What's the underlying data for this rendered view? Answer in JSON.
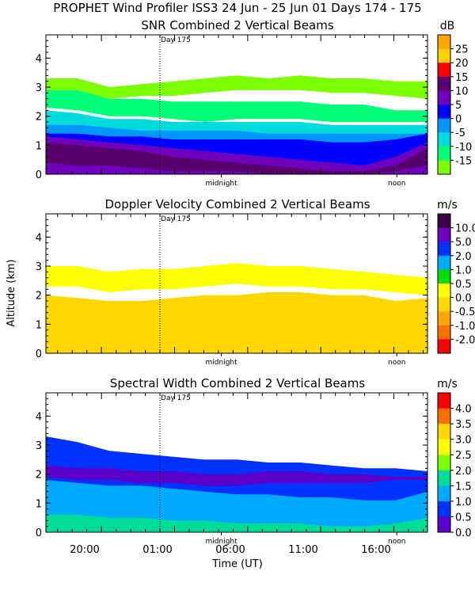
{
  "figure": {
    "title": "PROPHET Wind Profiler ISS3  24 Jun - 25 Jun 01 Days 174 - 175",
    "ylabel": "Altitude (km)",
    "xlabel": "Time (UT)",
    "x_tick_labels": [
      "20:00",
      "01:00",
      "06:00",
      "11:00",
      "16:00"
    ],
    "y_tick_labels": [
      "0",
      "1",
      "2",
      "3",
      "4"
    ],
    "marker_labels": {
      "day": "Day 175",
      "midnight": "midnight",
      "noon": "noon"
    }
  },
  "chart_data": [
    {
      "type": "heatmap",
      "title": "SNR Combined 2 Vertical Beams",
      "xlabel": "Time (UT)",
      "ylabel": "Altitude (km)",
      "x_ticks": [
        "20:00",
        "01:00",
        "06:00",
        "11:00",
        "16:00"
      ],
      "xlim_hours_ut": [
        16.2,
        42.3
      ],
      "ylim_km": [
        0,
        4.8
      ],
      "y_ticks": [
        0,
        1,
        2,
        3,
        4
      ],
      "colorbar": {
        "unit": "dB",
        "labels": [
          "25",
          "20",
          "15",
          "10",
          "5",
          "0",
          "-5",
          "-10",
          "-15"
        ],
        "colors": [
          "#ffa500",
          "#ffd200",
          "#ff0000",
          "#5a006e",
          "#6e00be",
          "#0000ff",
          "#0096ff",
          "#00dcdc",
          "#00ff78",
          "#7cff00"
        ]
      },
      "annotations": [
        "Day 175",
        "midnight",
        "noon"
      ],
      "layers": [
        {
          "level": "-15",
          "color": "#7cff00",
          "top_km": [
            3.3,
            3.3,
            3.0,
            3.1,
            3.2,
            3.3,
            3.4,
            3.3,
            3.4,
            3.3,
            3.3,
            3.2,
            3.2
          ],
          "bottom_km": [
            2.9,
            2.9,
            2.6,
            2.7,
            2.7,
            2.8,
            2.9,
            2.9,
            2.9,
            2.8,
            2.8,
            2.7,
            2.6
          ]
        },
        {
          "level": "-10",
          "color": "#00ff78",
          "top_km": [
            2.9,
            2.9,
            2.6,
            2.6,
            2.5,
            2.5,
            2.5,
            2.5,
            2.5,
            2.4,
            2.4,
            2.2,
            2.2
          ],
          "bottom_km": [
            2.3,
            2.2,
            2.0,
            2.0,
            1.9,
            1.8,
            1.9,
            1.9,
            1.9,
            1.8,
            1.8,
            1.8,
            1.8
          ]
        },
        {
          "level": "-5",
          "color": "#00dcdc",
          "top_km": [
            2.2,
            2.1,
            1.9,
            1.9,
            1.8,
            1.8,
            1.8,
            1.8,
            1.8,
            1.7,
            1.7,
            1.7,
            1.7
          ],
          "bottom_km": [
            1.6,
            1.6,
            1.5,
            1.4,
            1.4,
            1.4,
            1.4,
            1.3,
            1.3,
            1.3,
            1.3,
            1.3,
            1.3
          ]
        },
        {
          "level": "0",
          "color": "#0096ff",
          "top_km": [
            1.7,
            1.7,
            1.6,
            1.5,
            1.5,
            1.5,
            1.5,
            1.4,
            1.4,
            1.4,
            1.4,
            1.4,
            1.4
          ],
          "bottom_km": [
            1.3,
            1.2,
            1.2,
            1.1,
            1.1,
            1.1,
            1.1,
            1.0,
            1.0,
            1.0,
            1.0,
            1.0,
            1.0
          ]
        },
        {
          "level": "5",
          "color": "#0000ff",
          "top_km": [
            1.4,
            1.4,
            1.3,
            1.3,
            1.2,
            1.2,
            1.2,
            1.2,
            1.2,
            1.1,
            1.1,
            1.2,
            1.4
          ],
          "bottom_km": [
            0.0,
            0.0,
            0.0,
            0.0,
            0.0,
            0.0,
            0.0,
            0.0,
            0.0,
            0.0,
            0.0,
            0.0,
            0.0
          ]
        },
        {
          "level": "10",
          "color": "#6e00be",
          "top_km": [
            1.3,
            1.2,
            1.1,
            1.0,
            0.9,
            0.8,
            0.7,
            0.6,
            0.5,
            0.4,
            0.3,
            0.6,
            1.1
          ],
          "bottom_km": [
            0.0,
            0.0,
            0.0,
            0.0,
            0.0,
            0.0,
            0.0,
            0.0,
            0.0,
            0.0,
            0.0,
            0.0,
            0.0
          ]
        },
        {
          "level": "15",
          "color": "#5a006e",
          "top_km": [
            1.1,
            1.0,
            0.9,
            0.8,
            0.6,
            0.5,
            0.4,
            0.3,
            0.2,
            0.1,
            0.1,
            0.3,
            0.9
          ],
          "bottom_km": [
            0.4,
            0.3,
            0.3,
            0.2,
            0.1,
            0.1,
            0.1,
            0.0,
            0.0,
            0.0,
            0.0,
            0.1,
            0.3
          ]
        }
      ]
    },
    {
      "type": "heatmap",
      "title": "Doppler Velocity Combined 2 Vertical Beams",
      "xlabel": "Time (UT)",
      "ylabel": "Altitude (km)",
      "x_ticks": [
        "20:00",
        "01:00",
        "06:00",
        "11:00",
        "16:00"
      ],
      "xlim_hours_ut": [
        16.2,
        42.3
      ],
      "ylim_km": [
        0,
        4.8
      ],
      "y_ticks": [
        0,
        1,
        2,
        3,
        4
      ],
      "colorbar": {
        "unit": "m/s",
        "labels": [
          "10.0",
          "5.0",
          "2.0",
          "1.0",
          "0.5",
          "0.0",
          "-0.5",
          "-1.0",
          "-2.0"
        ],
        "colors": [
          "#3c0046",
          "#6e00be",
          "#0032ff",
          "#00aaff",
          "#00dc00",
          "#ffff00",
          "#ffd700",
          "#ffa500",
          "#ff6e00",
          "#ff0000"
        ]
      },
      "annotations": [
        "Day 175",
        "midnight",
        "noon"
      ],
      "layers": [
        {
          "level": "0.0",
          "color": "#ffff00",
          "top_km": [
            3.0,
            3.0,
            2.8,
            2.9,
            2.9,
            3.0,
            3.1,
            3.0,
            3.0,
            2.9,
            2.8,
            2.7,
            2.6
          ],
          "bottom_km": [
            2.3,
            2.3,
            2.1,
            2.2,
            2.2,
            2.3,
            2.4,
            2.3,
            2.3,
            2.2,
            2.2,
            2.1,
            2.0
          ]
        },
        {
          "level": "-0.5",
          "color": "#ffd700",
          "top_km": [
            2.0,
            1.9,
            1.8,
            1.8,
            1.9,
            2.0,
            2.0,
            2.1,
            2.1,
            2.0,
            2.0,
            1.8,
            1.9
          ],
          "bottom_km": [
            0.0,
            0.0,
            0.0,
            0.0,
            0.0,
            0.0,
            0.0,
            0.0,
            0.0,
            0.0,
            0.0,
            0.0,
            0.0
          ]
        }
      ]
    },
    {
      "type": "heatmap",
      "title": "Spectral Width Combined 2 Vertical Beams",
      "xlabel": "Time (UT)",
      "ylabel": "Altitude (km)",
      "x_ticks": [
        "20:00",
        "01:00",
        "06:00",
        "11:00",
        "16:00"
      ],
      "xlim_hours_ut": [
        16.2,
        42.3
      ],
      "ylim_km": [
        0,
        4.8
      ],
      "y_ticks": [
        0,
        1,
        2,
        3,
        4
      ],
      "colorbar": {
        "unit": "m/s",
        "labels": [
          "4.0",
          "3.5",
          "3.0",
          "2.5",
          "2.0",
          "1.5",
          "1.0",
          "0.5",
          "0.0"
        ],
        "colors": [
          "#ff0000",
          "#ff6e00",
          "#ffd700",
          "#ffff00",
          "#7cff00",
          "#00dc96",
          "#00aaff",
          "#0032ff",
          "#5a00c8"
        ]
      },
      "annotations": [
        "Day 175",
        "midnight",
        "noon"
      ],
      "layers": [
        {
          "level": "0.5",
          "color": "#0032ff",
          "top_km": [
            3.3,
            3.1,
            2.8,
            2.7,
            2.6,
            2.5,
            2.5,
            2.4,
            2.4,
            2.3,
            2.2,
            2.2,
            2.1
          ],
          "bottom_km": [
            0.0,
            0.0,
            0.0,
            0.0,
            0.0,
            0.0,
            0.0,
            0.0,
            0.0,
            0.0,
            0.0,
            0.0,
            0.0
          ]
        },
        {
          "level": "0.0",
          "color": "#5a00c8",
          "top_km": [
            2.3,
            2.2,
            2.2,
            2.1,
            2.1,
            2.0,
            2.0,
            2.1,
            2.1,
            2.0,
            2.0,
            1.9,
            1.9
          ],
          "bottom_km": [
            1.9,
            1.8,
            1.8,
            1.7,
            1.7,
            1.6,
            1.6,
            1.7,
            1.7,
            1.7,
            1.7,
            1.8,
            1.8
          ]
        },
        {
          "level": "1.0",
          "color": "#00aaff",
          "top_km": [
            1.8,
            1.7,
            1.6,
            1.6,
            1.5,
            1.4,
            1.3,
            1.3,
            1.2,
            1.2,
            1.1,
            1.1,
            1.4
          ],
          "bottom_km": [
            0.0,
            0.0,
            0.0,
            0.0,
            0.0,
            0.0,
            0.0,
            0.0,
            0.0,
            0.0,
            0.0,
            0.0,
            0.0
          ]
        },
        {
          "level": "1.5",
          "color": "#00dc96",
          "top_km": [
            0.6,
            0.6,
            0.5,
            0.5,
            0.4,
            0.4,
            0.3,
            0.3,
            0.3,
            0.2,
            0.2,
            0.3,
            0.5
          ],
          "bottom_km": [
            0.0,
            0.0,
            0.0,
            0.0,
            0.0,
            0.0,
            0.0,
            0.0,
            0.0,
            0.0,
            0.0,
            0.0,
            0.0
          ]
        }
      ]
    }
  ]
}
